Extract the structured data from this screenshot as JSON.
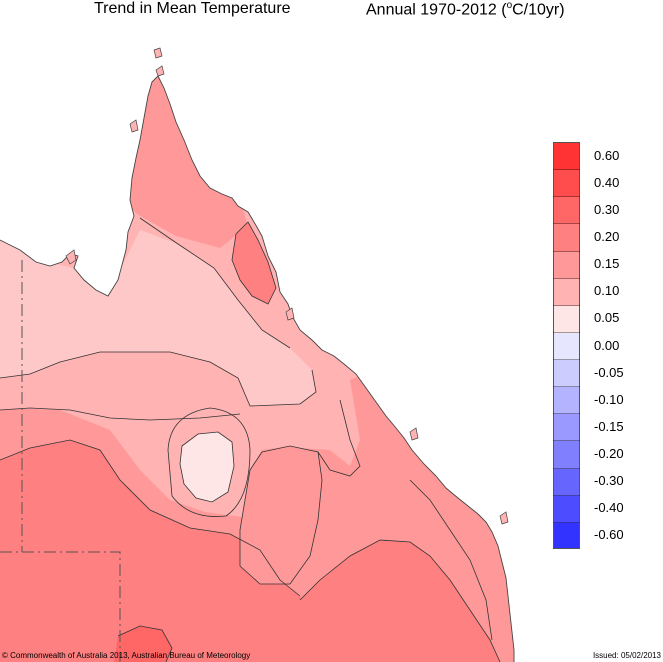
{
  "title": {
    "left": "Trend in Mean Temperature",
    "right_main": "Annual 1970-2012 (",
    "right_sup": "o",
    "right_tail": "C/10yr)"
  },
  "legend": {
    "colors": [
      "#ff3333",
      "#ff4d4d",
      "#ff6666",
      "#ff8080",
      "#ff9999",
      "#ffb3b3",
      "#ffe6e6",
      "#e6e6ff",
      "#ccccff",
      "#b3b3ff",
      "#9999ff",
      "#8080ff",
      "#6666ff",
      "#4d4dff",
      "#3333ff"
    ],
    "labels": [
      "0.60",
      "0.40",
      "0.30",
      "0.20",
      "0.15",
      "0.10",
      "0.05",
      "0.00",
      "-0.05",
      "-0.10",
      "-0.15",
      "-0.20",
      "-0.30",
      "-0.40",
      "-0.60"
    ]
  },
  "footer": {
    "copyright": "© Commonwealth of Australia 2013, Australian Bureau of Meteorology",
    "issued": "Issued: 05/02/2013"
  }
}
